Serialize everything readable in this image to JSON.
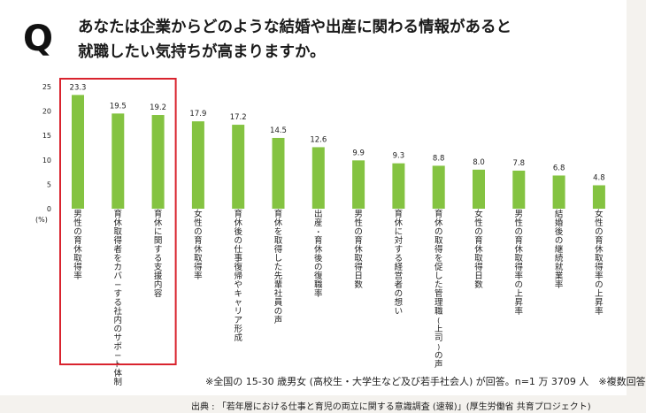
{
  "question": {
    "mark": "Q",
    "line1": "あなたは企業からどのような結婚や出産に関わる情報があると",
    "line2": "就職したい気持ちが高まりますか。"
  },
  "chart_data": {
    "type": "bar",
    "title": "",
    "xlabel": "",
    "ylabel": "(%)",
    "ylim": [
      0,
      25
    ],
    "yticks": [
      0,
      5,
      10,
      15,
      20,
      25
    ],
    "grid": false,
    "categories": [
      "男性の育休取得率",
      "育休取得者をカバーする社内のサポート体制",
      "育休に関する支援内容",
      "女性の育休取得率",
      "育休後の仕事復帰やキャリア形成",
      "育休を取得した先輩社員の声",
      "出産・育休後の復職率",
      "男性の育休取得日数",
      "育休に対する経営者の想い",
      "育休の取得を促した管理職(上司)の声",
      "女性の育休取得日数",
      "男性の育休取得率の上昇率",
      "結婚後の継続就業率",
      "女性の育休取得率の上昇率"
    ],
    "values": [
      23.3,
      19.5,
      19.2,
      17.9,
      17.2,
      14.5,
      12.6,
      9.9,
      9.3,
      8.8,
      8.0,
      7.8,
      6.8,
      4.8
    ],
    "value_labels": [
      "23.3",
      "19.5",
      "19.2",
      "17.9",
      "17.2",
      "14.5",
      "12.6",
      "9.9",
      "9.3",
      "8.8",
      "8.0",
      "7.8",
      "6.8",
      "4.8"
    ],
    "highlight_range": [
      0,
      2
    ],
    "colors": {
      "bar": "#84c341",
      "highlight": "#d9232e",
      "text": "#222222"
    }
  },
  "notes": {
    "survey": "※全国の 15-30 歳男女 (高校生・大学生など及び若手社会人) が回答。n=1 万 3709 人　※複数回答",
    "source": "出典 : 「若年層における仕事と育児の両立に関する意識調査 (速報)」(厚生労働省 共育プロジェクト)"
  }
}
